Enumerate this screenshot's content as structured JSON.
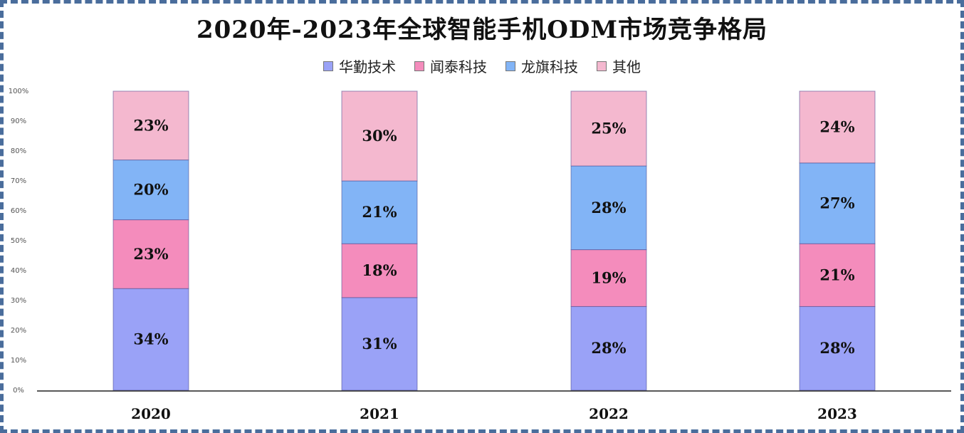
{
  "chart_data": {
    "type": "bar",
    "stacked": true,
    "title": "2020年-2023年全球智能手机ODM市场竞争格局",
    "categories": [
      "2020",
      "2021",
      "2022",
      "2023"
    ],
    "series": [
      {
        "name": "华勤技术",
        "color": "#9aa2f7",
        "values": [
          34,
          31,
          28,
          28
        ]
      },
      {
        "name": "闻泰科技",
        "color": "#f48cbc",
        "values": [
          23,
          18,
          19,
          21
        ]
      },
      {
        "name": "龙旗科技",
        "color": "#82b4f6",
        "values": [
          20,
          21,
          28,
          27
        ]
      },
      {
        "name": "其他",
        "color": "#f4b8cf",
        "values": [
          23,
          30,
          25,
          24
        ]
      }
    ],
    "value_labels": [
      [
        "34%",
        "31%",
        "28%",
        "28%"
      ],
      [
        "23%",
        "18%",
        "19%",
        "21%"
      ],
      [
        "20%",
        "21%",
        "28%",
        "27%"
      ],
      [
        "23%",
        "30%",
        "25%",
        "24%"
      ]
    ],
    "y_ticks": [
      "0%",
      "10%",
      "20%",
      "30%",
      "40%",
      "50%",
      "60%",
      "70%",
      "80%",
      "90%",
      "100%"
    ],
    "ylim": [
      0,
      100
    ],
    "legend_position": "top-center",
    "grid": false
  }
}
